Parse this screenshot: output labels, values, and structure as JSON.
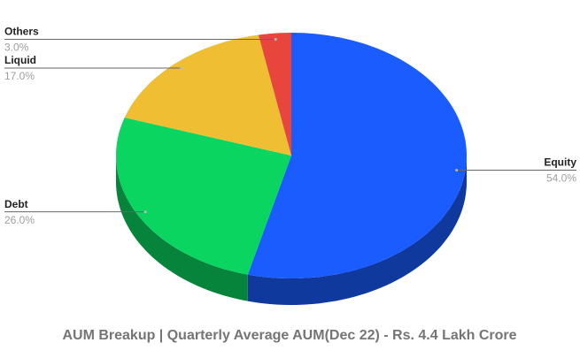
{
  "chart_data": {
    "type": "pie3d",
    "title": "AUM Breakup | Quarterly Average AUM(Dec 22) - Rs. 4.4 Lakh Crore",
    "categories": [
      "Equity",
      "Debt",
      "Liquid",
      "Others"
    ],
    "values": [
      54,
      26,
      17,
      3
    ],
    "value_labels": [
      "54.0%",
      "26.0%",
      "17.0%",
      "3.0%"
    ],
    "colors": [
      "#1a5cff",
      "#0ad561",
      "#f0be32",
      "#e8453c"
    ]
  }
}
